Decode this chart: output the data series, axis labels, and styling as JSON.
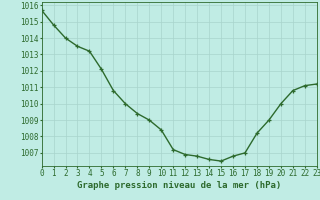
{
  "x": [
    0,
    1,
    2,
    3,
    4,
    5,
    6,
    7,
    8,
    9,
    10,
    11,
    12,
    13,
    14,
    15,
    16,
    17,
    18,
    19,
    20,
    21,
    22,
    23
  ],
  "y": [
    1015.7,
    1014.8,
    1014.0,
    1013.5,
    1013.2,
    1012.1,
    1010.8,
    1010.0,
    1009.4,
    1009.0,
    1008.4,
    1007.2,
    1006.9,
    1006.8,
    1006.6,
    1006.5,
    1006.8,
    1007.0,
    1008.2,
    1009.0,
    1010.0,
    1010.8,
    1011.1,
    1011.2
  ],
  "line_color": "#2d6a2d",
  "marker": "+",
  "bg_color": "#c0ece4",
  "grid_color": "#a8d4cc",
  "xlabel": "Graphe pression niveau de la mer (hPa)",
  "xlabel_color": "#2d6a2d",
  "tick_color": "#2d6a2d",
  "ylim": [
    1006.2,
    1016.2
  ],
  "xlim": [
    0,
    23
  ],
  "yticks": [
    1007,
    1008,
    1009,
    1010,
    1011,
    1012,
    1013,
    1014,
    1015,
    1016
  ],
  "xticks": [
    0,
    1,
    2,
    3,
    4,
    5,
    6,
    7,
    8,
    9,
    10,
    11,
    12,
    13,
    14,
    15,
    16,
    17,
    18,
    19,
    20,
    21,
    22,
    23
  ],
  "xlabel_fontsize": 6.5,
  "tick_fontsize": 5.5,
  "linewidth": 1.0,
  "markersize": 3.5
}
